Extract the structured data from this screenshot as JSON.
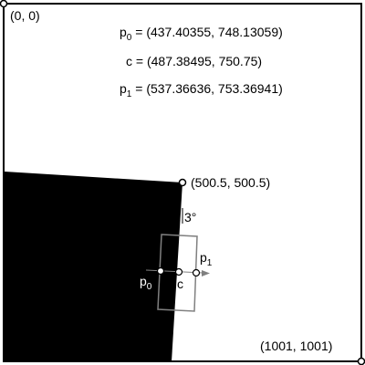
{
  "colors": {
    "background": "#ffffff",
    "shape_fill": "#000000",
    "frame_stroke": "#000000",
    "window_stroke": "#808080",
    "arrow_stroke": "#808080"
  },
  "corners": {
    "top_left": "(0, 0)",
    "bottom_right": "(1001, 1001)",
    "edge_point": "(500.5, 500.5)"
  },
  "equations": {
    "p0": {
      "name": "p",
      "sub": "0",
      "value": " = (437.40355,  748.13059)"
    },
    "c": {
      "name": "c",
      "value": " = (487.38495,  750.75)"
    },
    "p1": {
      "name": "p",
      "sub": "1",
      "value": " = (537.36636,  753.36941)"
    }
  },
  "angle_label": "3°",
  "point_labels": {
    "p0": {
      "name": "p",
      "sub": "0"
    },
    "c": {
      "name": "c"
    },
    "p1": {
      "name": "p",
      "sub": "1"
    }
  }
}
